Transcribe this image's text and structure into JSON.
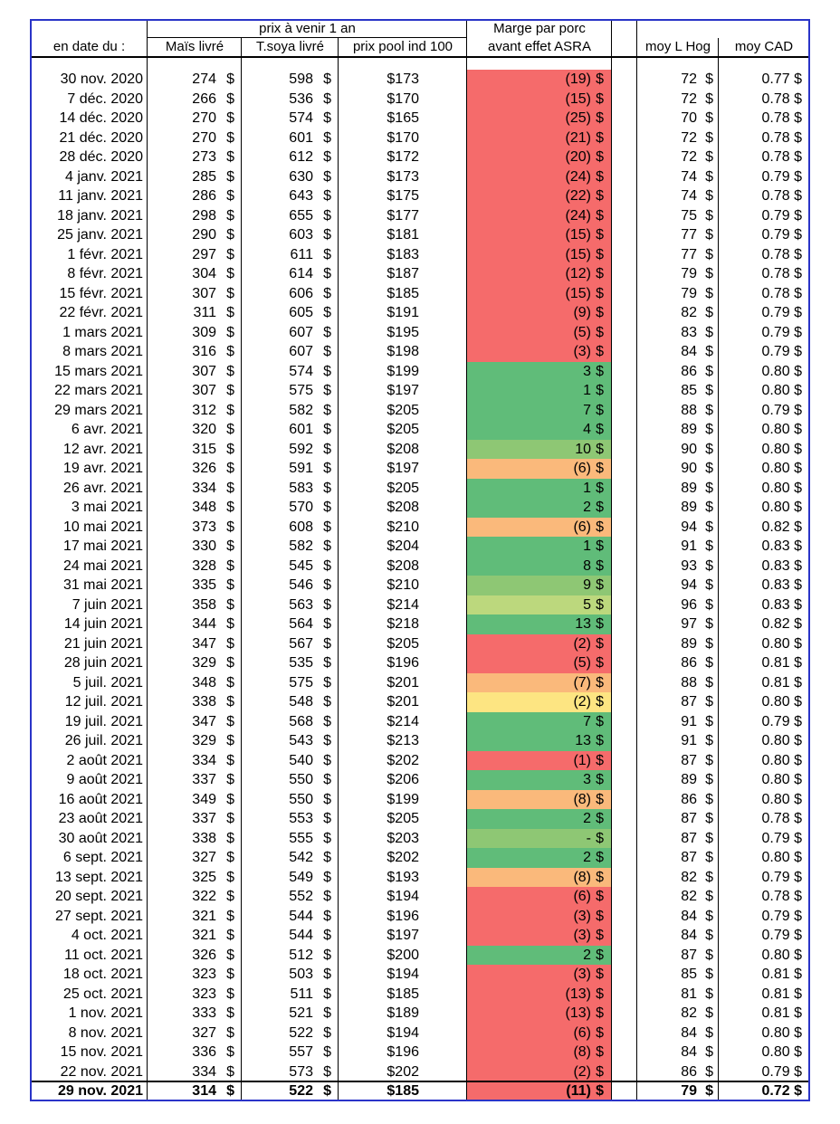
{
  "header": {
    "group_label": "prix à venir 1 an",
    "margin_line1": "Marge par porc",
    "margin_line2": "avant effet ASRA",
    "date_label": "en date du :",
    "corn_label": "Maïs livré",
    "soy_label": "T.soya livré",
    "pool_label": "prix pool ind 100",
    "hog_label": "moy L Hog",
    "cad_label": "moy CAD"
  },
  "colors": {
    "red": "#f56b6b",
    "green": "#60bc79",
    "lightgreen": "#8ec774",
    "yellowgreen": "#bcd87d",
    "orange": "#fab97b",
    "yellow": "#fde582",
    "frame": "#2a34c8"
  },
  "rows": [
    {
      "date": "30 nov. 2020",
      "corn": "274",
      "cs": "$",
      "soy": "598",
      "ss": "$",
      "pool": "$173",
      "margin": "(19)",
      "ms": "$",
      "color": "red",
      "hog": "72",
      "hs": "$",
      "cad": "0.77 $"
    },
    {
      "date": "7 déc. 2020",
      "corn": "266",
      "cs": "$",
      "soy": "536",
      "ss": "$",
      "pool": "$170",
      "margin": "(15)",
      "ms": "$",
      "color": "red",
      "hog": "72",
      "hs": "$",
      "cad": "0.78 $"
    },
    {
      "date": "14 déc. 2020",
      "corn": "270",
      "cs": "$",
      "soy": "574",
      "ss": "$",
      "pool": "$165",
      "margin": "(25)",
      "ms": "$",
      "color": "red",
      "hog": "70",
      "hs": "$",
      "cad": "0.78 $"
    },
    {
      "date": "21 déc. 2020",
      "corn": "270",
      "cs": "$",
      "soy": "601",
      "ss": "$",
      "pool": "$170",
      "margin": "(21)",
      "ms": "$",
      "color": "red",
      "hog": "72",
      "hs": "$",
      "cad": "0.78 $"
    },
    {
      "date": "28 déc. 2020",
      "corn": "273",
      "cs": "$",
      "soy": "612",
      "ss": "$",
      "pool": "$172",
      "margin": "(20)",
      "ms": "$",
      "color": "red",
      "hog": "72",
      "hs": "$",
      "cad": "0.78 $"
    },
    {
      "date": "4 janv. 2021",
      "corn": "285",
      "cs": "$",
      "soy": "630",
      "ss": "$",
      "pool": "$173",
      "margin": "(24)",
      "ms": "$",
      "color": "red",
      "hog": "74",
      "hs": "$",
      "cad": "0.79 $"
    },
    {
      "date": "11 janv. 2021",
      "corn": "286",
      "cs": "$",
      "soy": "643",
      "ss": "$",
      "pool": "$175",
      "margin": "(22)",
      "ms": "$",
      "color": "red",
      "hog": "74",
      "hs": "$",
      "cad": "0.78 $"
    },
    {
      "date": "18 janv. 2021",
      "corn": "298",
      "cs": "$",
      "soy": "655",
      "ss": "$",
      "pool": "$177",
      "margin": "(24)",
      "ms": "$",
      "color": "red",
      "hog": "75",
      "hs": "$",
      "cad": "0.79 $"
    },
    {
      "date": "25 janv. 2021",
      "corn": "290",
      "cs": "$",
      "soy": "603",
      "ss": "$",
      "pool": "$181",
      "margin": "(15)",
      "ms": "$",
      "color": "red",
      "hog": "77",
      "hs": "$",
      "cad": "0.79 $"
    },
    {
      "date": "1 févr. 2021",
      "corn": "297",
      "cs": "$",
      "soy": "611",
      "ss": "$",
      "pool": "$183",
      "margin": "(15)",
      "ms": "$",
      "color": "red",
      "hog": "77",
      "hs": "$",
      "cad": "0.78 $"
    },
    {
      "date": "8 févr. 2021",
      "corn": "304",
      "cs": "$",
      "soy": "614",
      "ss": "$",
      "pool": "$187",
      "margin": "(12)",
      "ms": "$",
      "color": "red",
      "hog": "79",
      "hs": "$",
      "cad": "0.78 $"
    },
    {
      "date": "15 févr. 2021",
      "corn": "307",
      "cs": "$",
      "soy": "606",
      "ss": "$",
      "pool": "$185",
      "margin": "(15)",
      "ms": "$",
      "color": "red",
      "hog": "79",
      "hs": "$",
      "cad": "0.78 $"
    },
    {
      "date": "22 févr. 2021",
      "corn": "311",
      "cs": "$",
      "soy": "605",
      "ss": "$",
      "pool": "$191",
      "margin": "(9)",
      "ms": "$",
      "color": "red",
      "hog": "82",
      "hs": "$",
      "cad": "0.79 $"
    },
    {
      "date": "1 mars 2021",
      "corn": "309",
      "cs": "$",
      "soy": "607",
      "ss": "$",
      "pool": "$195",
      "margin": "(5)",
      "ms": "$",
      "color": "red",
      "hog": "83",
      "hs": "$",
      "cad": "0.79 $"
    },
    {
      "date": "8 mars 2021",
      "corn": "316",
      "cs": "$",
      "soy": "607",
      "ss": "$",
      "pool": "$198",
      "margin": "(3)",
      "ms": "$",
      "color": "red",
      "hog": "84",
      "hs": "$",
      "cad": "0.79 $"
    },
    {
      "date": "15 mars 2021",
      "corn": "307",
      "cs": "$",
      "soy": "574",
      "ss": "$",
      "pool": "$199",
      "margin": "3",
      "ms": "$",
      "color": "green",
      "hog": "86",
      "hs": "$",
      "cad": "0.80 $"
    },
    {
      "date": "22 mars 2021",
      "corn": "307",
      "cs": "$",
      "soy": "575",
      "ss": "$",
      "pool": "$197",
      "margin": "1",
      "ms": "$",
      "color": "green",
      "hog": "85",
      "hs": "$",
      "cad": "0.80 $"
    },
    {
      "date": "29 mars 2021",
      "corn": "312",
      "cs": "$",
      "soy": "582",
      "ss": "$",
      "pool": "$205",
      "margin": "7",
      "ms": "$",
      "color": "green",
      "hog": "88",
      "hs": "$",
      "cad": "0.79 $"
    },
    {
      "date": "6 avr. 2021",
      "corn": "320",
      "cs": "$",
      "soy": "601",
      "ss": "$",
      "pool": "$205",
      "margin": "4",
      "ms": "$",
      "color": "green",
      "hog": "89",
      "hs": "$",
      "cad": "0.80 $"
    },
    {
      "date": "12 avr. 2021",
      "corn": "315",
      "cs": "$",
      "soy": "592",
      "ss": "$",
      "pool": "$208",
      "margin": "10",
      "ms": "$",
      "color": "lightgreen",
      "hog": "90",
      "hs": "$",
      "cad": "0.80 $"
    },
    {
      "date": "19 avr. 2021",
      "corn": "326",
      "cs": "$",
      "soy": "591",
      "ss": "$",
      "pool": "$197",
      "margin": "(6)",
      "ms": "$",
      "color": "orange",
      "hog": "90",
      "hs": "$",
      "cad": "0.80 $"
    },
    {
      "date": "26 avr. 2021",
      "corn": "334",
      "cs": "$",
      "soy": "583",
      "ss": "$",
      "pool": "$205",
      "margin": "1",
      "ms": "$",
      "color": "green",
      "hog": "89",
      "hs": "$",
      "cad": "0.80 $"
    },
    {
      "date": "3 mai 2021",
      "corn": "348",
      "cs": "$",
      "soy": "570",
      "ss": "$",
      "pool": "$208",
      "margin": "2",
      "ms": "$",
      "color": "green",
      "hog": "89",
      "hs": "$",
      "cad": "0.80 $"
    },
    {
      "date": "10 mai 2021",
      "corn": "373",
      "cs": "$",
      "soy": "608",
      "ss": "$",
      "pool": "$210",
      "margin": "(6)",
      "ms": "$",
      "color": "orange",
      "hog": "94",
      "hs": "$",
      "cad": "0.82 $"
    },
    {
      "date": "17 mai 2021",
      "corn": "330",
      "cs": "$",
      "soy": "582",
      "ss": "$",
      "pool": "$204",
      "margin": "1",
      "ms": "$",
      "color": "green",
      "hog": "91",
      "hs": "$",
      "cad": "0.83 $"
    },
    {
      "date": "24 mai 2021",
      "corn": "328",
      "cs": "$",
      "soy": "545",
      "ss": "$",
      "pool": "$208",
      "margin": "8",
      "ms": "$",
      "color": "green",
      "hog": "93",
      "hs": "$",
      "cad": "0.83 $"
    },
    {
      "date": "31 mai 2021",
      "corn": "335",
      "cs": "$",
      "soy": "546",
      "ss": "$",
      "pool": "$210",
      "margin": "9",
      "ms": "$",
      "color": "lightgreen",
      "hog": "94",
      "hs": "$",
      "cad": "0.83 $"
    },
    {
      "date": "7 juin 2021",
      "corn": "358",
      "cs": "$",
      "soy": "563",
      "ss": "$",
      "pool": "$214",
      "margin": "5",
      "ms": "$",
      "color": "yellowgreen",
      "hog": "96",
      "hs": "$",
      "cad": "0.83 $"
    },
    {
      "date": "14 juin 2021",
      "corn": "344",
      "cs": "$",
      "soy": "564",
      "ss": "$",
      "pool": "$218",
      "margin": "13",
      "ms": "$",
      "color": "green",
      "hog": "97",
      "hs": "$",
      "cad": "0.82 $"
    },
    {
      "date": "21 juin 2021",
      "corn": "347",
      "cs": "$",
      "soy": "567",
      "ss": "$",
      "pool": "$205",
      "margin": "(2)",
      "ms": "$",
      "color": "red",
      "hog": "89",
      "hs": "$",
      "cad": "0.80 $"
    },
    {
      "date": "28 juin 2021",
      "corn": "329",
      "cs": "$",
      "soy": "535",
      "ss": "$",
      "pool": "$196",
      "margin": "(5)",
      "ms": "$",
      "color": "red",
      "hog": "86",
      "hs": "$",
      "cad": "0.81 $"
    },
    {
      "date": "5 juil. 2021",
      "corn": "348",
      "cs": "$",
      "soy": "575",
      "ss": "$",
      "pool": "$201",
      "margin": "(7)",
      "ms": "$",
      "color": "orange",
      "hog": "88",
      "hs": "$",
      "cad": "0.81 $"
    },
    {
      "date": "12 juil. 2021",
      "corn": "338",
      "cs": "$",
      "soy": "548",
      "ss": "$",
      "pool": "$201",
      "margin": "(2)",
      "ms": "$",
      "color": "yellow",
      "hog": "87",
      "hs": "$",
      "cad": "0.80 $"
    },
    {
      "date": "19 juil. 2021",
      "corn": "347",
      "cs": "$",
      "soy": "568",
      "ss": "$",
      "pool": "$214",
      "margin": "7",
      "ms": "$",
      "color": "green",
      "hog": "91",
      "hs": "$",
      "cad": "0.79 $"
    },
    {
      "date": "26 juil. 2021",
      "corn": "329",
      "cs": "$",
      "soy": "543",
      "ss": "$",
      "pool": "$213",
      "margin": "13",
      "ms": "$",
      "color": "green",
      "hog": "91",
      "hs": "$",
      "cad": "0.80 $"
    },
    {
      "date": "2 août 2021",
      "corn": "334",
      "cs": "$",
      "soy": "540",
      "ss": "$",
      "pool": "$202",
      "margin": "(1)",
      "ms": "$",
      "color": "red",
      "hog": "87",
      "hs": "$",
      "cad": "0.80 $"
    },
    {
      "date": "9 août 2021",
      "corn": "337",
      "cs": "$",
      "soy": "550",
      "ss": "$",
      "pool": "$206",
      "margin": "3",
      "ms": "$",
      "color": "green",
      "hog": "89",
      "hs": "$",
      "cad": "0.80 $"
    },
    {
      "date": "16 août 2021",
      "corn": "349",
      "cs": "$",
      "soy": "550",
      "ss": "$",
      "pool": "$199",
      "margin": "(8)",
      "ms": "$",
      "color": "orange",
      "hog": "86",
      "hs": "$",
      "cad": "0.80 $"
    },
    {
      "date": "23 août 2021",
      "corn": "337",
      "cs": "$",
      "soy": "553",
      "ss": "$",
      "pool": "$205",
      "margin": "2",
      "ms": "$",
      "color": "green",
      "hog": "87",
      "hs": "$",
      "cad": "0.78 $"
    },
    {
      "date": "30 août 2021",
      "corn": "338",
      "cs": "$",
      "soy": "555",
      "ss": "$",
      "pool": "$203",
      "margin": "-",
      "ms": "$",
      "color": "lightgreen",
      "hog": "87",
      "hs": "$",
      "cad": "0.79 $"
    },
    {
      "date": "6 sept. 2021",
      "corn": "327",
      "cs": "$",
      "soy": "542",
      "ss": "$",
      "pool": "$202",
      "margin": "2",
      "ms": "$",
      "color": "green",
      "hog": "87",
      "hs": "$",
      "cad": "0.80 $"
    },
    {
      "date": "13 sept. 2021",
      "corn": "325",
      "cs": "$",
      "soy": "549",
      "ss": "$",
      "pool": "$193",
      "margin": "(8)",
      "ms": "$",
      "color": "orange",
      "hog": "82",
      "hs": "$",
      "cad": "0.79 $"
    },
    {
      "date": "20 sept. 2021",
      "corn": "322",
      "cs": "$",
      "soy": "552",
      "ss": "$",
      "pool": "$194",
      "margin": "(6)",
      "ms": "$",
      "color": "red",
      "hog": "82",
      "hs": "$",
      "cad": "0.78 $"
    },
    {
      "date": "27 sept. 2021",
      "corn": "321",
      "cs": "$",
      "soy": "544",
      "ss": "$",
      "pool": "$196",
      "margin": "(3)",
      "ms": "$",
      "color": "red",
      "hog": "84",
      "hs": "$",
      "cad": "0.79 $"
    },
    {
      "date": "4 oct. 2021",
      "corn": "321",
      "cs": "$",
      "soy": "544",
      "ss": "$",
      "pool": "$197",
      "margin": "(3)",
      "ms": "$",
      "color": "red",
      "hog": "84",
      "hs": "$",
      "cad": "0.79 $"
    },
    {
      "date": "11 oct. 2021",
      "corn": "326",
      "cs": "$",
      "soy": "512",
      "ss": "$",
      "pool": "$200",
      "margin": "2",
      "ms": "$",
      "color": "green",
      "hog": "87",
      "hs": "$",
      "cad": "0.80 $"
    },
    {
      "date": "18 oct. 2021",
      "corn": "323",
      "cs": "$",
      "soy": "503",
      "ss": "$",
      "pool": "$194",
      "margin": "(3)",
      "ms": "$",
      "color": "red",
      "hog": "85",
      "hs": "$",
      "cad": "0.81 $"
    },
    {
      "date": "25 oct. 2021",
      "corn": "323",
      "cs": "$",
      "soy": "511",
      "ss": "$",
      "pool": "$185",
      "margin": "(13)",
      "ms": "$",
      "color": "red",
      "hog": "81",
      "hs": "$",
      "cad": "0.81 $"
    },
    {
      "date": "1 nov. 2021",
      "corn": "333",
      "cs": "$",
      "soy": "521",
      "ss": "$",
      "pool": "$189",
      "margin": "(13)",
      "ms": "$",
      "color": "red",
      "hog": "82",
      "hs": "$",
      "cad": "0.81 $"
    },
    {
      "date": "8 nov. 2021",
      "corn": "327",
      "cs": "$",
      "soy": "522",
      "ss": "$",
      "pool": "$194",
      "margin": "(6)",
      "ms": "$",
      "color": "red",
      "hog": "84",
      "hs": "$",
      "cad": "0.80 $"
    },
    {
      "date": "15 nov. 2021",
      "corn": "336",
      "cs": "$",
      "soy": "557",
      "ss": "$",
      "pool": "$196",
      "margin": "(8)",
      "ms": "$",
      "color": "red",
      "hog": "84",
      "hs": "$",
      "cad": "0.80 $"
    },
    {
      "date": "22 nov. 2021",
      "corn": "334",
      "cs": "$",
      "soy": "573",
      "ss": "$",
      "pool": "$202",
      "margin": "(2)",
      "ms": "$",
      "color": "red",
      "hog": "86",
      "hs": "$",
      "cad": "0.79 $"
    },
    {
      "date": "29 nov. 2021",
      "corn": "314",
      "cs": "$",
      "soy": "522",
      "ss": "$",
      "pool": "$185",
      "margin": "(11)",
      "ms": "$",
      "color": "red",
      "hog": "79",
      "hs": "$",
      "cad": "0.72 $",
      "bold": true
    }
  ]
}
